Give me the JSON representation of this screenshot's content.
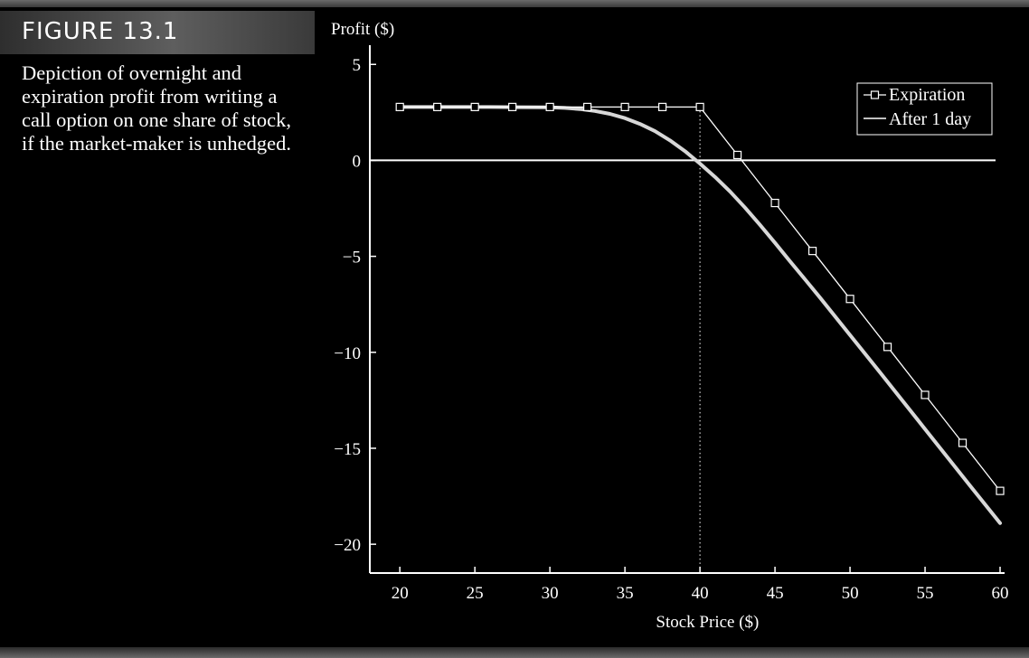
{
  "figure": {
    "label": "FIGURE 13.1",
    "caption": "Depiction of overnight and expiration profit from writing a call option on one share of stock, if the market-maker is unhedged."
  },
  "chart_data": {
    "type": "line",
    "title": "",
    "xlabel": "Stock Price ($)",
    "ylabel": "Profit ($)",
    "xlim": [
      18,
      60.3
    ],
    "ylim": [
      -21.5,
      6
    ],
    "x_ticks": [
      20,
      25,
      30,
      35,
      40,
      45,
      50,
      55,
      60
    ],
    "y_ticks": [
      5,
      0,
      -5,
      -10,
      -15,
      -20
    ],
    "y_tick_labels": [
      "5",
      "0",
      "−5",
      "−10",
      "−15",
      "−20"
    ],
    "strike_marker_x": 40,
    "legend_position": "top-right",
    "series": [
      {
        "name": "Expiration",
        "style": "line-with-square-markers",
        "x": [
          20,
          22.5,
          25,
          27.5,
          30,
          32.5,
          35,
          37.5,
          40,
          42.5,
          45,
          47.5,
          50,
          52.5,
          55,
          57.5,
          60
        ],
        "y": [
          2.78,
          2.78,
          2.78,
          2.78,
          2.78,
          2.78,
          2.78,
          2.78,
          2.78,
          0.28,
          -2.22,
          -4.72,
          -7.22,
          -9.72,
          -12.22,
          -14.72,
          -17.22
        ]
      },
      {
        "name": "After 1 day",
        "style": "thick-line",
        "x": [
          20,
          22,
          24,
          26,
          28,
          30,
          31,
          32,
          33,
          34,
          35,
          36,
          37,
          38,
          39,
          40,
          41,
          42,
          43,
          44,
          45,
          46,
          47,
          48,
          50,
          52,
          55,
          58,
          60
        ],
        "y": [
          2.78,
          2.78,
          2.78,
          2.78,
          2.77,
          2.76,
          2.73,
          2.67,
          2.57,
          2.42,
          2.2,
          1.9,
          1.52,
          1.04,
          0.48,
          -0.17,
          -0.86,
          -1.62,
          -2.46,
          -3.36,
          -4.3,
          -5.26,
          -6.2,
          -7.15,
          -9.1,
          -11.05,
          -14.0,
          -16.95,
          -18.9
        ]
      }
    ],
    "colors": {
      "background": "#000000",
      "axis": "#ffffff",
      "expiration_line": "#ffffff",
      "after_1_day_line": "#d8d8d8"
    }
  }
}
